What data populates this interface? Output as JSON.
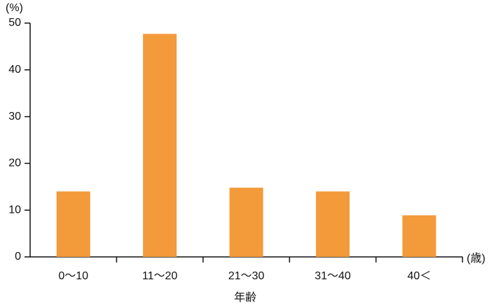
{
  "chart_data": {
    "type": "bar",
    "y_label": "(%)",
    "x_unit": "(歳)",
    "x_label": "年齢",
    "categories": [
      "0〜10",
      "11〜20",
      "21〜30",
      "31〜40",
      "40＜"
    ],
    "values": [
      14,
      47.7,
      14.8,
      14,
      8.9
    ],
    "color": "#f39a3a",
    "ylim": [
      0,
      50
    ],
    "yticks": [
      0,
      10,
      20,
      30,
      40,
      50
    ]
  }
}
